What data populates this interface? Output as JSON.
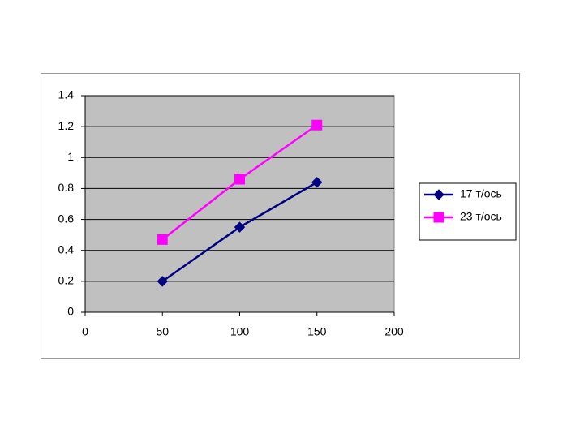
{
  "chart_data": {
    "type": "line",
    "x": [
      50,
      100,
      150
    ],
    "series": [
      {
        "name": "17 т/ось",
        "color": "#000080",
        "marker": "diamond",
        "values": [
          0.2,
          0.55,
          0.84
        ]
      },
      {
        "name": "23 т/ось",
        "color": "#ff00ff",
        "marker": "square",
        "values": [
          0.47,
          0.86,
          1.21
        ]
      }
    ],
    "xlim": [
      0,
      200
    ],
    "xticks": [
      0,
      50,
      100,
      150,
      200
    ],
    "ylim": [
      0,
      1.4
    ],
    "yticks": [
      0,
      0.2,
      0.4,
      0.6,
      0.8,
      1,
      1.2,
      1.4
    ],
    "grid": true,
    "legend": "right"
  }
}
